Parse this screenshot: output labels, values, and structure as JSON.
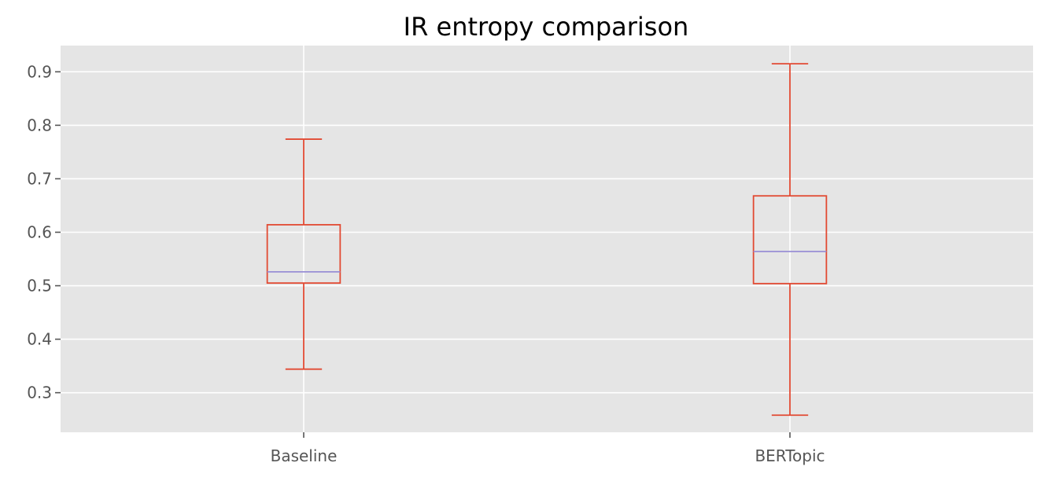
{
  "chart_data": {
    "type": "box",
    "title": "IR entropy comparison",
    "xlabel": "",
    "ylabel": "",
    "categories": [
      "Baseline",
      "BERTopic"
    ],
    "boxes": [
      {
        "category": "Baseline",
        "whisker_low": 0.344,
        "q1": 0.505,
        "median": 0.526,
        "q3": 0.614,
        "whisker_high": 0.774
      },
      {
        "category": "BERTopic",
        "whisker_low": 0.258,
        "q1": 0.504,
        "median": 0.564,
        "q3": 0.668,
        "whisker_high": 0.915
      }
    ],
    "ylim": [
      0.226,
      0.949
    ],
    "yticks": [
      "0.3",
      "0.4",
      "0.5",
      "0.6",
      "0.7",
      "0.8",
      "0.9"
    ],
    "grid": true,
    "legend": "none",
    "colors": {
      "plot_background": "#e5e5e5",
      "grid": "#ffffff",
      "box": "#e24a33",
      "median": "#988ed5",
      "tick_label": "#555555",
      "tick_mark": "#555555",
      "title": "#000000"
    }
  }
}
